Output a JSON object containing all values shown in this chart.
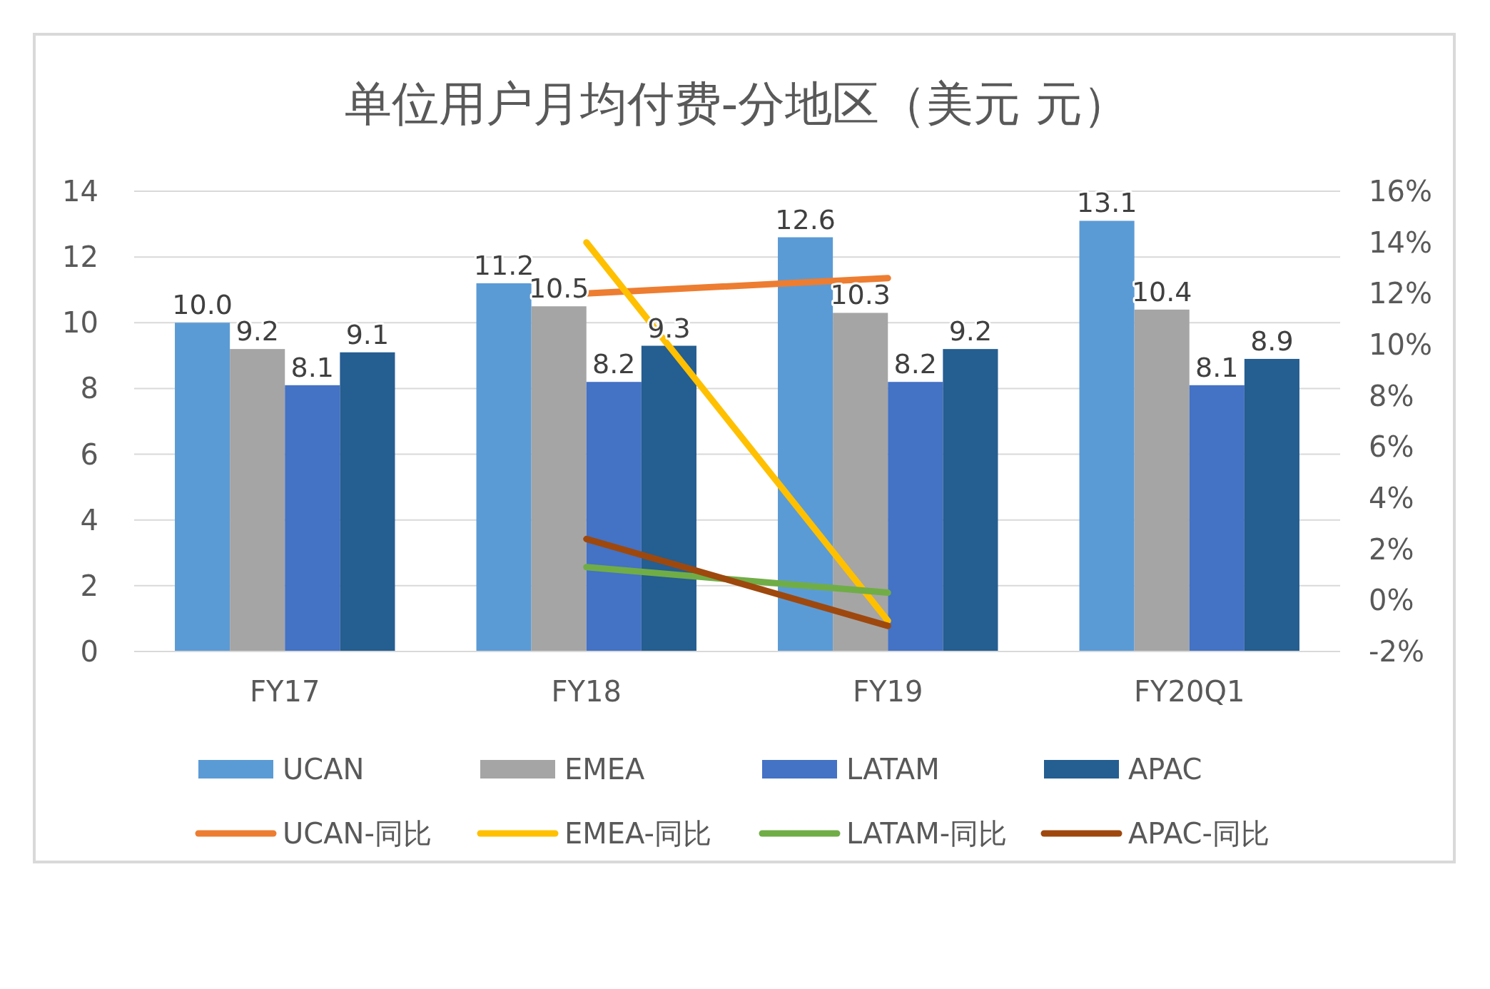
{
  "chart_data": {
    "type": "bar",
    "title": "单位用户月均付费-分地区（美元 元）",
    "categories": [
      "FY17",
      "FY18",
      "FY19",
      "FY20Q1"
    ],
    "series": [
      {
        "name": "UCAN",
        "color": "#5b9bd5",
        "values": [
          10.0,
          11.2,
          12.6,
          13.1
        ],
        "value_labels": [
          "10.0",
          "11.2",
          "12.6",
          "13.1"
        ]
      },
      {
        "name": "EMEA",
        "color": "#a5a5a5",
        "values": [
          9.2,
          10.5,
          10.3,
          10.4
        ],
        "value_labels": [
          "9.2",
          "10.5",
          "10.3",
          "10.4"
        ]
      },
      {
        "name": "LATAM",
        "color": "#4472c4",
        "values": [
          8.1,
          8.2,
          8.2,
          8.1
        ],
        "value_labels": [
          "8.1",
          "8.2",
          "8.2",
          "8.1"
        ]
      },
      {
        "name": "APAC",
        "color": "#255e91",
        "values": [
          9.1,
          9.3,
          9.2,
          8.9
        ],
        "value_labels": [
          "9.1",
          "9.3",
          "9.2",
          "8.9"
        ]
      },
      {
        "name": "UCAN-同比",
        "type": "line",
        "axis": "y2",
        "color": "#ed7d31",
        "values": [
          null,
          12.0,
          12.6,
          null
        ]
      },
      {
        "name": "EMEA-同比",
        "type": "line",
        "axis": "y2",
        "color": "#ffc000",
        "values": [
          null,
          14.0,
          -0.8,
          null
        ]
      },
      {
        "name": "LATAM-同比",
        "type": "line",
        "axis": "y2",
        "color": "#70ad47",
        "values": [
          null,
          1.3,
          0.3,
          null
        ]
      },
      {
        "name": "APAC-同比",
        "type": "line",
        "axis": "y2",
        "color": "#9e480e",
        "values": [
          null,
          2.4,
          -1.0,
          null
        ]
      }
    ],
    "ylim": [
      0,
      14
    ],
    "yticks": [
      0,
      2,
      4,
      6,
      8,
      10,
      12,
      14
    ],
    "y2lim": [
      -2,
      16
    ],
    "y2ticks": [
      {
        "value": -2,
        "label": "-2%"
      },
      {
        "value": 0,
        "label": "0%"
      },
      {
        "value": 2,
        "label": "2%"
      },
      {
        "value": 4,
        "label": "4%"
      },
      {
        "value": 6,
        "label": "6%"
      },
      {
        "value": 8,
        "label": "8%"
      },
      {
        "value": 10,
        "label": "10%"
      },
      {
        "value": 12,
        "label": "12%"
      },
      {
        "value": 14,
        "label": "14%"
      },
      {
        "value": 16,
        "label": "16%"
      }
    ],
    "grid": "y",
    "legend": "bottom"
  }
}
